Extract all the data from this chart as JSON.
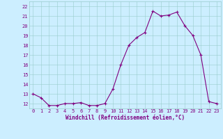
{
  "x": [
    0,
    1,
    2,
    3,
    4,
    5,
    6,
    7,
    8,
    9,
    10,
    11,
    12,
    13,
    14,
    15,
    16,
    17,
    18,
    19,
    20,
    21,
    22,
    23
  ],
  "y": [
    13.0,
    12.6,
    11.8,
    11.8,
    12.0,
    12.0,
    12.1,
    11.8,
    11.8,
    12.0,
    13.5,
    16.0,
    18.0,
    18.8,
    19.3,
    21.5,
    21.0,
    21.1,
    21.4,
    20.0,
    19.0,
    17.0,
    12.2,
    12.0
  ],
  "line_color": "#800080",
  "marker": "+",
  "marker_size": 3,
  "marker_edge_width": 0.8,
  "line_width": 0.8,
  "bg_color": "#cceeff",
  "grid_color": "#99cccc",
  "xlabel": "Windchill (Refroidissement éolien,°C)",
  "ylabel_ticks": [
    12,
    13,
    14,
    15,
    16,
    17,
    18,
    19,
    20,
    21,
    22
  ],
  "xlim": [
    -0.5,
    23.5
  ],
  "ylim": [
    11.5,
    22.5
  ],
  "xticks": [
    0,
    1,
    2,
    3,
    4,
    5,
    6,
    7,
    8,
    9,
    10,
    11,
    12,
    13,
    14,
    15,
    16,
    17,
    18,
    19,
    20,
    21,
    22,
    23
  ],
  "font_color": "#800080",
  "tick_fontsize": 5,
  "xlabel_fontsize": 5.5
}
